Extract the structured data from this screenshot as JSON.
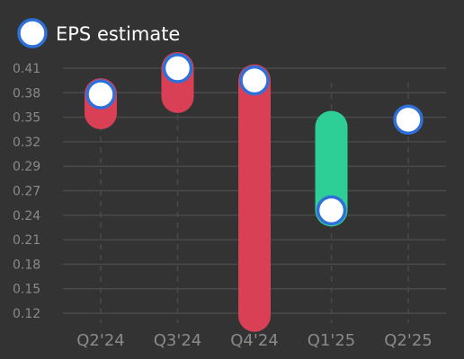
{
  "chart_data": {
    "type": "dot-range",
    "legend": {
      "label": "EPS estimate",
      "placement": "top-left"
    },
    "categories": [
      "Q2'24",
      "Q3'24",
      "Q4'24",
      "Q1'25",
      "Q2'25"
    ],
    "y_ticks": [
      "0.41",
      "0.38",
      "0.35",
      "0.32",
      "0.29",
      "0.27",
      "0.24",
      "0.21",
      "0.18",
      "0.15",
      "0.12"
    ],
    "ylim": [
      0.12,
      0.41
    ],
    "grid": true,
    "series": [
      {
        "name": "EPS estimate",
        "values": [
          0.378,
          0.41,
          0.395,
          0.246,
          0.347
        ]
      }
    ],
    "ranges": [
      {
        "from": 0.378,
        "to": 0.355,
        "direction": "down"
      },
      {
        "from": 0.41,
        "to": 0.375,
        "direction": "down"
      },
      {
        "from": 0.395,
        "to": 0.117,
        "direction": "down"
      },
      {
        "from": 0.246,
        "to": 0.338,
        "direction": "up"
      },
      null
    ],
    "colors": {
      "background": "#333333",
      "down": "#d94055",
      "up": "#2ecf96",
      "marker_fill": "#ffffff",
      "marker_stroke": "#2e6fd9",
      "grid": "#4a4a4a",
      "axis_text": "#8a8a8a",
      "legend_text": "#ffffff"
    }
  }
}
